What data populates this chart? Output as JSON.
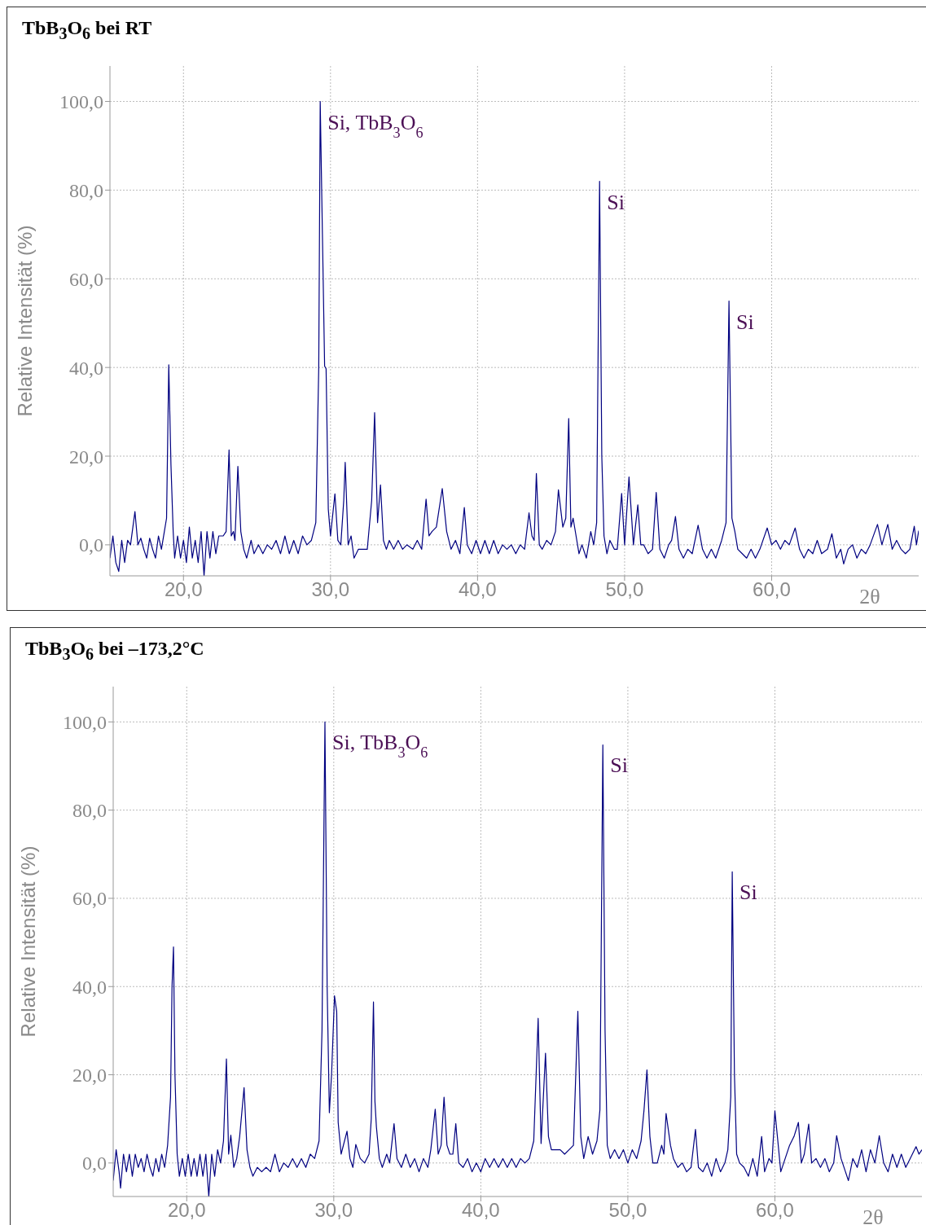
{
  "chart_data": [
    {
      "type": "line",
      "title": "TbB$_{3}$O$_{6}$ bei RT",
      "xlabel": "2θ",
      "ylabel": "Relative Intensität (%)",
      "color": "#000080",
      "marker": "none",
      "line_style": "solid",
      "grid": true,
      "xlim": [
        15,
        70
      ],
      "xticks": [
        {
          "value": 20,
          "label": "20,0"
        },
        {
          "value": 30,
          "label": "30,0"
        },
        {
          "value": 40,
          "label": "40,0"
        },
        {
          "value": 50,
          "label": "50,0"
        },
        {
          "value": 60,
          "label": "60,0"
        }
      ],
      "ylim": [
        -7,
        108
      ],
      "yticks": [
        {
          "value": 0,
          "label": "0,0"
        },
        {
          "value": 20,
          "label": "20,0"
        },
        {
          "value": 40,
          "label": "40,0"
        },
        {
          "value": 60,
          "label": "60,0"
        },
        {
          "value": 80,
          "label": "80,0"
        },
        {
          "value": 100,
          "label": "100,0"
        }
      ],
      "annotations": [
        {
          "text": "Si, TbB$_{3}$O$_{6}$",
          "x": 29.3,
          "y": 100
        },
        {
          "text": "Si",
          "x": 48.3,
          "y": 82
        },
        {
          "text": "Si",
          "x": 57.1,
          "y": 55
        }
      ],
      "x": [
        15.0,
        15.2,
        15.4,
        15.6,
        15.8,
        16.0,
        16.2,
        16.4,
        16.7,
        16.9,
        17.1,
        17.3,
        17.5,
        17.7,
        17.9,
        18.1,
        18.3,
        18.5,
        18.7,
        18.85,
        19.0,
        19.15,
        19.3,
        19.4,
        19.6,
        19.8,
        20.0,
        20.2,
        20.4,
        20.6,
        20.8,
        21.0,
        21.2,
        21.4,
        21.6,
        21.8,
        22.0,
        22.2,
        22.4,
        22.7,
        22.9,
        23.1,
        23.25,
        23.4,
        23.5,
        23.7,
        23.9,
        24.1,
        24.3,
        24.6,
        24.8,
        25.1,
        25.4,
        25.7,
        26.0,
        26.3,
        26.6,
        26.9,
        27.2,
        27.5,
        27.8,
        28.1,
        28.4,
        28.7,
        29.0,
        29.2,
        29.3,
        29.45,
        29.6,
        29.7,
        29.85,
        30.0,
        30.3,
        30.5,
        30.7,
        30.9,
        31.0,
        31.2,
        31.4,
        31.6,
        31.9,
        32.2,
        32.5,
        32.8,
        33.0,
        33.2,
        33.4,
        33.6,
        33.8,
        34.0,
        34.3,
        34.6,
        34.9,
        35.2,
        35.6,
        35.9,
        36.2,
        36.5,
        36.7,
        36.9,
        37.2,
        37.6,
        37.9,
        38.2,
        38.5,
        38.8,
        39.1,
        39.3,
        39.6,
        39.9,
        40.2,
        40.5,
        40.8,
        41.1,
        41.4,
        41.7,
        42.0,
        42.3,
        42.6,
        42.9,
        43.2,
        43.5,
        43.7,
        43.85,
        44.0,
        44.2,
        44.4,
        44.7,
        45.0,
        45.3,
        45.5,
        45.8,
        46.0,
        46.2,
        46.35,
        46.5,
        46.7,
        46.9,
        47.1,
        47.4,
        47.7,
        47.9,
        48.1,
        48.3,
        48.45,
        48.6,
        48.8,
        49.0,
        49.3,
        49.5,
        49.8,
        50.0,
        50.3,
        50.6,
        50.9,
        51.1,
        51.3,
        51.6,
        51.9,
        52.15,
        52.4,
        52.7,
        53.0,
        53.2,
        53.46,
        53.7,
        54.0,
        54.3,
        54.6,
        55.0,
        55.3,
        55.6,
        55.9,
        56.2,
        56.6,
        56.9,
        57.1,
        57.3,
        57.5,
        57.7,
        58.0,
        58.3,
        58.6,
        58.9,
        59.2,
        59.7,
        60.0,
        60.3,
        60.6,
        60.9,
        61.2,
        61.6,
        61.9,
        62.2,
        62.5,
        62.8,
        63.1,
        63.4,
        63.8,
        64.1,
        64.4,
        64.7,
        64.9,
        65.2,
        65.5,
        65.8,
        66.1,
        66.4,
        66.7,
        67.2,
        67.5,
        67.9,
        68.2,
        68.5,
        68.8,
        69.1,
        69.4,
        69.7,
        69.85,
        70.0
      ],
      "values": [
        -3,
        2,
        -4,
        -6,
        1,
        -4,
        1,
        0,
        7.5,
        0,
        1.5,
        -1,
        -3,
        1.5,
        -1,
        -3,
        2,
        -1,
        3,
        6,
        40.6,
        18,
        3,
        -3,
        2,
        -3,
        1,
        -4,
        4,
        -3,
        1,
        -4,
        3,
        -7,
        3,
        -3,
        3,
        -2,
        2,
        2,
        3,
        21.4,
        2,
        3,
        1,
        17.7,
        3,
        -1,
        -3,
        1,
        -2,
        0,
        -2,
        0,
        -1,
        1,
        -2,
        2,
        -2,
        1,
        -2,
        2,
        0,
        1,
        5,
        40,
        100,
        70,
        40.3,
        39.7,
        8,
        2,
        11.5,
        1,
        0,
        10,
        18.6,
        0,
        2,
        -3,
        -1,
        -1,
        -1,
        10,
        29.8,
        5,
        13.5,
        1,
        -1,
        1,
        -1,
        1,
        -1,
        0,
        -1,
        1,
        -1,
        10.3,
        2,
        3,
        4,
        12.7,
        3,
        -1,
        1,
        -2,
        8.4,
        0,
        -2,
        1,
        -2,
        1,
        -2,
        1,
        -2,
        0,
        -1,
        0,
        -2,
        0,
        -1,
        7.2,
        2,
        1,
        16.1,
        0,
        -1,
        1,
        0,
        3,
        12.4,
        4,
        6,
        28.5,
        4,
        6,
        2,
        -2,
        0,
        -3,
        3,
        0,
        5,
        82,
        20,
        2,
        -2,
        1,
        -1,
        -1,
        11.6,
        0,
        15.3,
        0,
        9.0,
        0,
        0,
        -2,
        -1,
        11.8,
        -1,
        -3,
        0,
        1,
        6.4,
        -1,
        -3,
        -1,
        -2,
        4.4,
        -1,
        -3,
        -1,
        -3,
        1,
        5,
        55,
        6,
        3,
        -1,
        -2,
        -3,
        -1,
        -3,
        -1,
        3.8,
        0,
        1,
        -1,
        1,
        0,
        3.8,
        -1,
        -3,
        -1,
        -2,
        1,
        -2,
        -1,
        2.5,
        -3,
        -1,
        -4.3,
        -1,
        0,
        -3,
        -1,
        -2,
        0,
        4.6,
        0,
        4.6,
        -1,
        1,
        -1,
        -2,
        -1,
        4.2,
        0,
        3.2
      ]
    },
    {
      "type": "line",
      "title": "TbB$_{3}$O$_{6}$ bei –173,2°C",
      "xlabel": "2θ",
      "ylabel": "Relative Intensität (%)",
      "color": "#000080",
      "marker": "none",
      "line_style": "solid",
      "grid": true,
      "xlim": [
        15,
        70
      ],
      "xticks": [
        {
          "value": 20,
          "label": "20,0"
        },
        {
          "value": 30,
          "label": "30,0"
        },
        {
          "value": 40,
          "label": "40,0"
        },
        {
          "value": 50,
          "label": "50,0"
        },
        {
          "value": 60,
          "label": "60,0"
        }
      ],
      "ylim": [
        -7.6,
        108
      ],
      "yticks": [
        {
          "value": 0,
          "label": "0,0"
        },
        {
          "value": 20,
          "label": "20,0"
        },
        {
          "value": 40,
          "label": "40,0"
        },
        {
          "value": 60,
          "label": "60,0"
        },
        {
          "value": 80,
          "label": "80,0"
        },
        {
          "value": 100,
          "label": "100,0"
        }
      ],
      "annotations": [
        {
          "text": "Si, TbB$_{3}$O$_{6}$",
          "x": 29.4,
          "y": 100
        },
        {
          "text": "Si",
          "x": 48.3,
          "y": 94.8
        },
        {
          "text": "Si",
          "x": 57.1,
          "y": 66
        }
      ],
      "x": [
        15.0,
        15.2,
        15.4,
        15.5,
        15.7,
        15.9,
        16.1,
        16.3,
        16.5,
        16.7,
        16.9,
        17.1,
        17.3,
        17.5,
        17.7,
        17.9,
        18.1,
        18.3,
        18.5,
        18.7,
        18.9,
        19.0,
        19.1,
        19.2,
        19.35,
        19.5,
        19.7,
        19.9,
        20.1,
        20.3,
        20.5,
        20.7,
        20.9,
        21.1,
        21.3,
        21.5,
        21.7,
        21.9,
        22.1,
        22.3,
        22.5,
        22.7,
        22.85,
        23.0,
        23.2,
        23.4,
        23.6,
        23.9,
        24.1,
        24.3,
        24.5,
        24.8,
        25.1,
        25.4,
        25.7,
        26.0,
        26.3,
        26.6,
        26.9,
        27.2,
        27.5,
        27.8,
        28.1,
        28.4,
        28.7,
        29.0,
        29.2,
        29.4,
        29.55,
        29.7,
        29.85,
        30.05,
        30.2,
        30.3,
        30.5,
        30.9,
        31.1,
        31.3,
        31.5,
        31.8,
        32.1,
        32.4,
        32.55,
        32.7,
        32.8,
        32.9,
        33.1,
        33.3,
        33.6,
        33.8,
        34.1,
        34.3,
        34.6,
        34.9,
        35.2,
        35.5,
        35.8,
        36.1,
        36.4,
        36.6,
        36.9,
        37.1,
        37.3,
        37.5,
        37.7,
        37.9,
        38.1,
        38.3,
        38.5,
        38.8,
        39.1,
        39.4,
        39.7,
        40.0,
        40.3,
        40.6,
        40.9,
        41.2,
        41.5,
        41.8,
        42.1,
        42.4,
        42.7,
        43.0,
        43.3,
        43.6,
        43.9,
        44.1,
        44.4,
        44.6,
        44.8,
        45.1,
        45.4,
        45.7,
        46.0,
        46.3,
        46.6,
        46.8,
        47.0,
        47.3,
        47.6,
        47.9,
        48.1,
        48.3,
        48.45,
        48.6,
        48.8,
        49.1,
        49.4,
        49.7,
        50.0,
        50.3,
        50.6,
        50.9,
        51.1,
        51.3,
        51.5,
        51.7,
        52.0,
        52.3,
        52.45,
        52.6,
        52.9,
        53.1,
        53.4,
        53.7,
        54.0,
        54.3,
        54.6,
        54.8,
        55.1,
        55.4,
        55.7,
        56.0,
        56.3,
        56.6,
        56.8,
        57.0,
        57.1,
        57.25,
        57.4,
        57.6,
        57.9,
        58.2,
        58.5,
        58.8,
        59.1,
        59.3,
        59.6,
        59.8,
        60.0,
        60.2,
        60.4,
        60.7,
        61.0,
        61.3,
        61.6,
        61.8,
        62.0,
        62.3,
        62.5,
        62.8,
        63.1,
        63.4,
        63.7,
        64.0,
        64.2,
        64.5,
        64.8,
        65.0,
        65.3,
        65.6,
        65.9,
        66.2,
        66.5,
        66.8,
        67.1,
        67.4,
        67.7,
        68.0,
        68.3,
        68.6,
        68.9,
        69.2,
        69.6,
        69.8,
        70.0
      ],
      "values": [
        -4,
        3,
        -2,
        -5.7,
        2,
        -2,
        2,
        -3,
        2,
        -1,
        1,
        -2,
        2,
        -1,
        -3,
        1,
        -2,
        2,
        -1,
        4,
        15,
        40,
        49,
        20,
        2,
        -3,
        1,
        -3,
        2,
        -3,
        1,
        -3,
        2,
        -3,
        2,
        -7.6,
        2,
        -3,
        3,
        0,
        5,
        23.6,
        2,
        6.3,
        -1,
        1,
        6,
        17.1,
        3,
        -1,
        -3,
        -1,
        -2,
        -1,
        -2,
        2,
        -2,
        0,
        -1,
        1,
        -1,
        1,
        -1,
        2,
        1,
        5,
        30,
        100,
        40,
        11.4,
        20,
        37.9,
        34.3,
        9.2,
        2,
        7.2,
        1,
        -1,
        4.2,
        1,
        0,
        2,
        10,
        36.5,
        14,
        8.2,
        1,
        -1,
        2,
        0,
        8.9,
        1,
        -1,
        2,
        -1,
        1,
        -2,
        1,
        -1,
        3,
        12.2,
        2,
        4,
        14.9,
        4,
        2,
        2,
        8.9,
        0,
        -1,
        1,
        -2,
        0,
        -2,
        1,
        -1,
        1,
        -1,
        1,
        -1,
        1,
        -1,
        1,
        0,
        1,
        5,
        32.8,
        4.4,
        24.9,
        6,
        3,
        3,
        3,
        2,
        3,
        4,
        34.4,
        6,
        1,
        6,
        2,
        5,
        12,
        94.8,
        30,
        4,
        1,
        3,
        1,
        3,
        0,
        3,
        1,
        5,
        12,
        21.1,
        6,
        0,
        0,
        4,
        2,
        11.2,
        4,
        1,
        -1,
        0,
        -2,
        -1,
        7.6,
        -1,
        -2,
        0,
        -3,
        1,
        -2,
        0,
        3,
        15,
        66,
        20,
        2,
        0,
        -1,
        -3,
        1,
        -3,
        6,
        -2,
        1,
        0,
        11.8,
        5,
        -2,
        1,
        4,
        6,
        9.2,
        0,
        2,
        8.8,
        0,
        1,
        -1,
        1,
        -2,
        0,
        6.2,
        1,
        -2,
        -4,
        1,
        -1,
        3,
        -2,
        3,
        0,
        6.2,
        0,
        -2,
        2,
        -1,
        2,
        -1,
        1,
        3.7,
        2,
        3
      ]
    }
  ]
}
